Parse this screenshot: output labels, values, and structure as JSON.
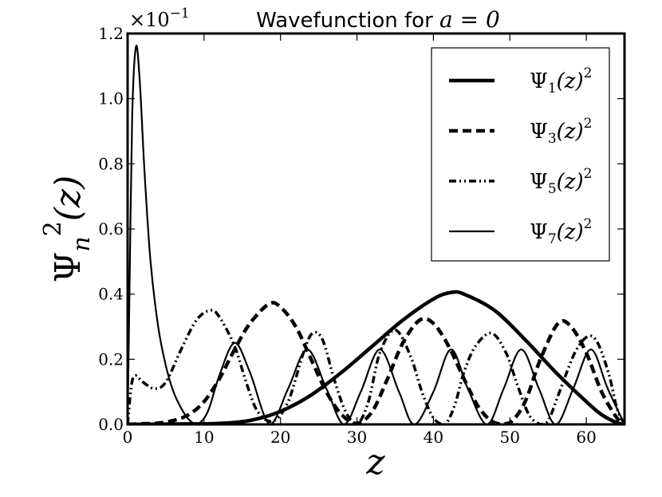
{
  "chart_data": {
    "type": "line",
    "title_prefix": "Wavefunction for ",
    "title_math": "a = 0",
    "xlabel": "z",
    "ylabel_psi": "Ψ",
    "ylabel_sub": "n",
    "ylabel_sup": "2",
    "ylabel_arg": "(z)",
    "offset_base": "×10",
    "offset_exp": "−1",
    "xlim": [
      0,
      65
    ],
    "ylim": [
      0,
      1.2
    ],
    "xticks": [
      0,
      10,
      20,
      30,
      40,
      50,
      60
    ],
    "xtick_labels": [
      "0",
      "10",
      "20",
      "30",
      "40",
      "50",
      "60"
    ],
    "yticks": [
      0,
      0.2,
      0.4,
      0.6,
      0.8,
      1.0,
      1.2
    ],
    "ytick_labels": [
      "0.0",
      "0.2",
      "0.4",
      "0.6",
      "0.8",
      "1.0",
      "1.2"
    ],
    "grid": false,
    "legend_position": "top-right",
    "series": [
      {
        "name": "Ψ1(z)2",
        "sym": "Ψ",
        "sub": "1",
        "arg": "(z)",
        "sup": "2",
        "style": "solid-thick",
        "color": "#000000",
        "x": [
          0,
          4,
          8,
          12,
          16,
          20,
          24,
          28,
          32,
          36,
          40,
          42.3,
          44,
          48,
          52,
          56,
          60,
          62,
          64,
          65
        ],
        "y": [
          0,
          0.0005,
          0.0015,
          0.003,
          0.012,
          0.04,
          0.09,
          0.16,
          0.24,
          0.32,
          0.385,
          0.405,
          0.4,
          0.35,
          0.26,
          0.16,
          0.07,
          0.03,
          0.005,
          0
        ]
      },
      {
        "name": "Ψ3(z)2",
        "sym": "Ψ",
        "sub": "3",
        "arg": "(z)",
        "sup": "2",
        "style": "dashed",
        "color": "#000000",
        "x": [
          0,
          2,
          4,
          6,
          8,
          10,
          12,
          14,
          16,
          18.5,
          20,
          22,
          24,
          26,
          28,
          30,
          32,
          34,
          36,
          38.2,
          40,
          42,
          44,
          46,
          48,
          50,
          52,
          54,
          56.3,
          58,
          60,
          62,
          64,
          65
        ],
        "y": [
          0,
          0.002,
          0.004,
          0.012,
          0.03,
          0.07,
          0.14,
          0.23,
          0.31,
          0.37,
          0.36,
          0.3,
          0.2,
          0.1,
          0.03,
          0.003,
          0.04,
          0.14,
          0.25,
          0.32,
          0.31,
          0.24,
          0.14,
          0.05,
          0.005,
          0.005,
          0.07,
          0.2,
          0.31,
          0.3,
          0.22,
          0.1,
          0.02,
          0
        ]
      },
      {
        "name": "Ψ5(z)2",
        "sym": "Ψ",
        "sub": "5",
        "arg": "(z)",
        "sup": "2",
        "style": "dash-dot-dot",
        "color": "#000000",
        "x": [
          0,
          0.5,
          1,
          2,
          3.5,
          5,
          7,
          9,
          10.8,
          12,
          14,
          15.5,
          17,
          19,
          21,
          23,
          24.2,
          25.5,
          27,
          28.5,
          30,
          31.5,
          33,
          35,
          37,
          38.5,
          40,
          41.5,
          42.8,
          44,
          45.5,
          47.6,
          49.5,
          51,
          52.5,
          54,
          55,
          56.5,
          58.5,
          60.2,
          61.5,
          63,
          64,
          65
        ],
        "y": [
          0,
          0.12,
          0.15,
          0.13,
          0.11,
          0.13,
          0.23,
          0.32,
          0.35,
          0.33,
          0.24,
          0.13,
          0.04,
          0.01,
          0.07,
          0.22,
          0.28,
          0.26,
          0.14,
          0.04,
          0.0,
          0.07,
          0.22,
          0.29,
          0.21,
          0.1,
          0.02,
          0.0,
          0.06,
          0.16,
          0.24,
          0.28,
          0.22,
          0.12,
          0.03,
          0.0,
          0.01,
          0.1,
          0.22,
          0.27,
          0.25,
          0.15,
          0.05,
          0
        ]
      },
      {
        "name": "Ψ7(z)2",
        "sym": "Ψ",
        "sub": "7",
        "arg": "(z)",
        "sup": "2",
        "style": "solid-thin",
        "color": "#000000",
        "x": [
          0,
          0.3,
          0.6,
          1.1,
          1.6,
          2.2,
          3,
          4,
          5,
          6,
          7,
          8,
          9.1,
          10.5,
          12,
          14,
          16,
          18.6,
          21,
          23.5,
          26,
          28.3,
          30.5,
          33,
          35.5,
          37.5,
          40,
          42.3,
          44.5,
          47,
          49.2,
          51.5,
          53.8,
          56,
          58.3,
          60.6,
          62.8,
          65
        ],
        "y": [
          0,
          0.5,
          0.95,
          1.16,
          1.05,
          0.78,
          0.5,
          0.3,
          0.18,
          0.1,
          0.05,
          0.015,
          0,
          0.04,
          0.15,
          0.25,
          0.16,
          0,
          0.11,
          0.23,
          0.11,
          0,
          0.1,
          0.23,
          0.1,
          0,
          0.1,
          0.23,
          0.11,
          0,
          0.11,
          0.23,
          0.11,
          0,
          0.11,
          0.23,
          0.11,
          0
        ]
      }
    ]
  }
}
